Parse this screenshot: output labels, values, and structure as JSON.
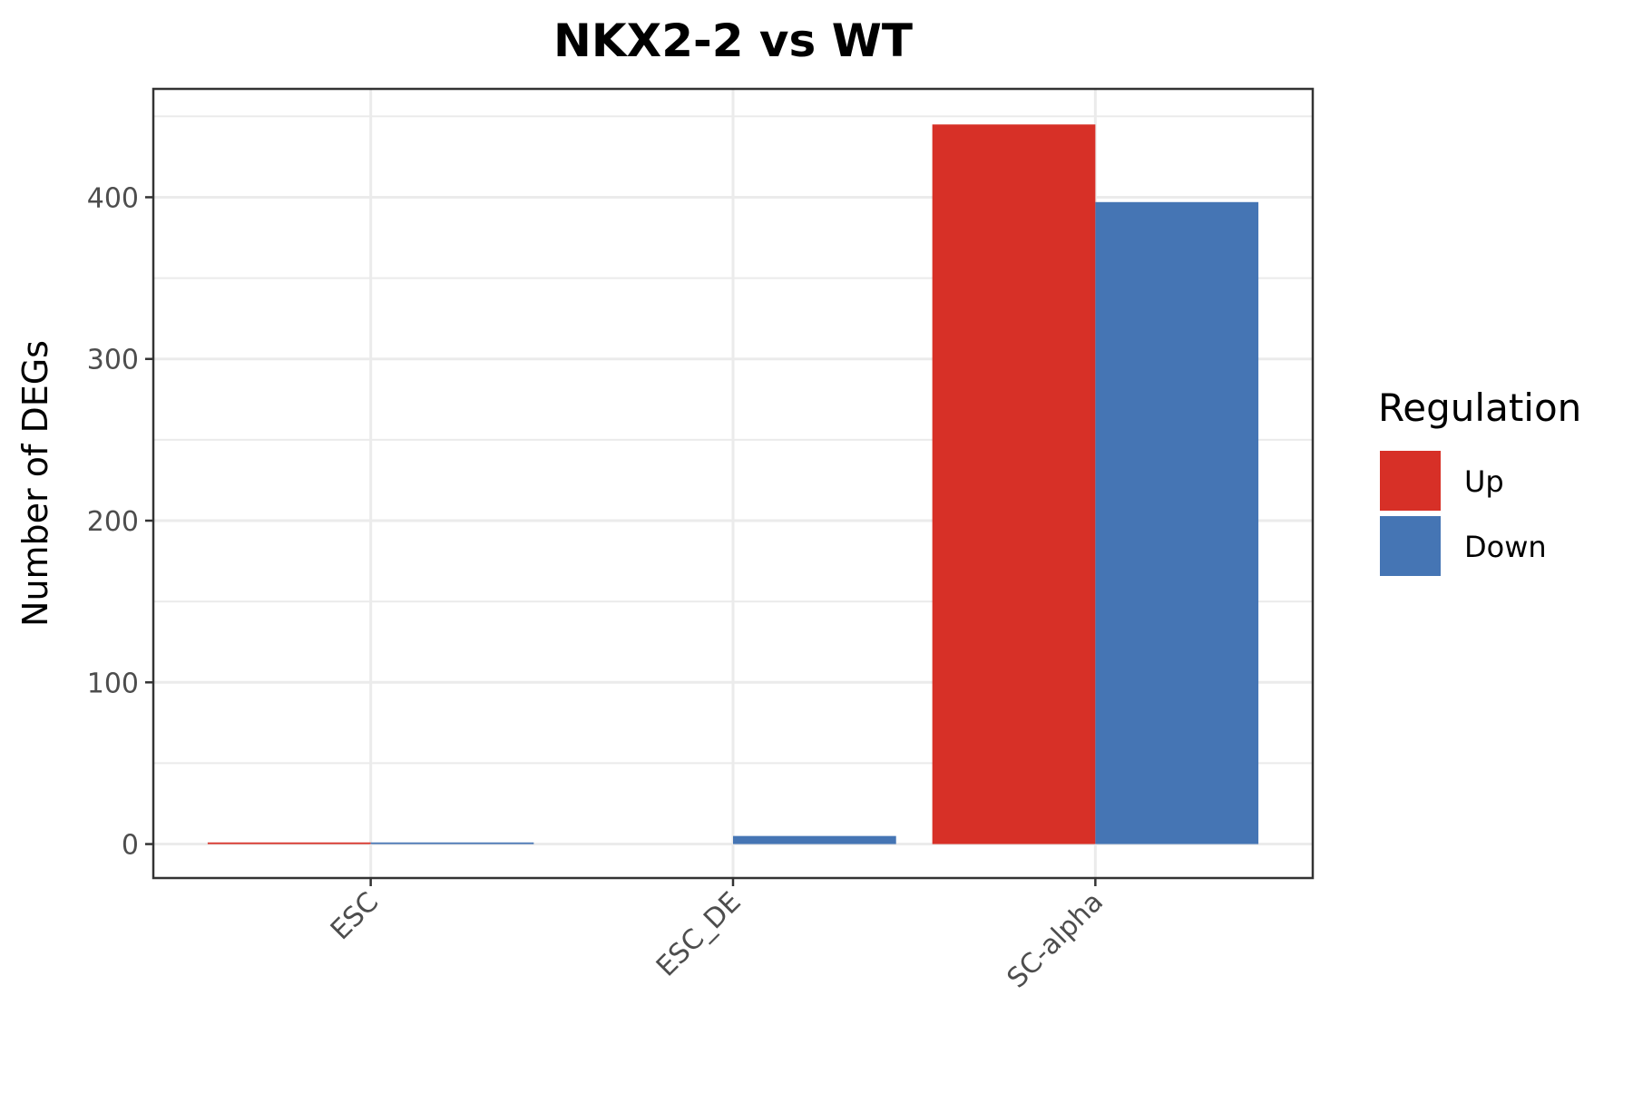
{
  "chart_data": {
    "type": "bar",
    "title": "NKX2-2 vs WT",
    "xlabel": "",
    "ylabel": "Number of DEGs",
    "categories": [
      "ESC",
      "ESC_DE",
      "SC-alpha"
    ],
    "series": [
      {
        "name": "Up",
        "color": "#D73027",
        "values": [
          1,
          0,
          445
        ]
      },
      {
        "name": "Down",
        "color": "#4575B4",
        "values": [
          1,
          5,
          397
        ]
      }
    ],
    "ylim": [
      -21,
      467
    ],
    "yticks": [
      0,
      100,
      200,
      300,
      400
    ],
    "ytick_labels": [
      "0",
      "100",
      "200",
      "300",
      "400"
    ],
    "grid": true,
    "legend": {
      "title": "Regulation",
      "position": "right"
    },
    "x_tick_rotation": 45
  }
}
